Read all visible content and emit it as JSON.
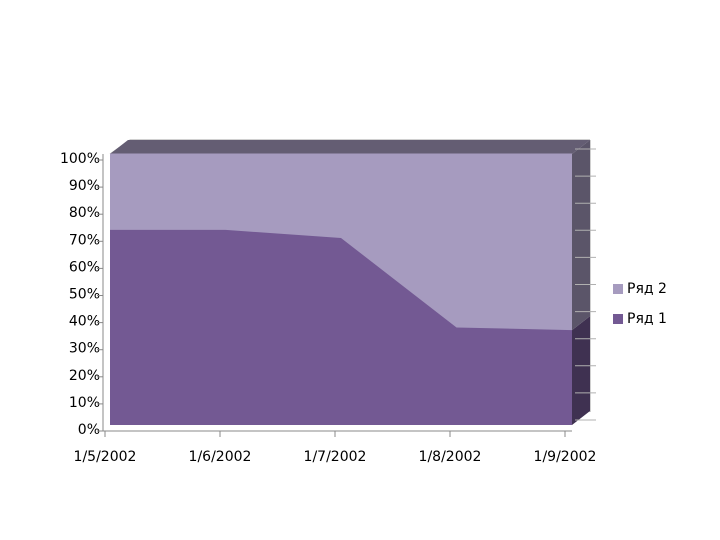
{
  "chart_data": {
    "type": "area",
    "stacked": true,
    "categories": [
      "1/5/2002",
      "1/6/2002",
      "1/7/2002",
      "1/8/2002",
      "1/9/2002"
    ],
    "series": [
      {
        "name": "Ряд 1",
        "color": "#735993",
        "values": [
          72,
          72,
          69,
          36,
          35
        ]
      },
      {
        "name": "Ряд 2",
        "color": "#a69bbf",
        "values": [
          28,
          28,
          31,
          64,
          65
        ]
      }
    ],
    "ylim": [
      0,
      100
    ],
    "yticks": [
      {
        "value": 0,
        "label": "0%"
      },
      {
        "value": 10,
        "label": "10%"
      },
      {
        "value": 20,
        "label": "20%"
      },
      {
        "value": 30,
        "label": "30%"
      },
      {
        "value": 40,
        "label": "40%"
      },
      {
        "value": 50,
        "label": "50%"
      },
      {
        "value": 60,
        "label": "60%"
      },
      {
        "value": 70,
        "label": "70%"
      },
      {
        "value": 80,
        "label": "80%"
      },
      {
        "value": 90,
        "label": "90%"
      },
      {
        "value": 100,
        "label": "100%"
      }
    ],
    "legend": "right"
  }
}
